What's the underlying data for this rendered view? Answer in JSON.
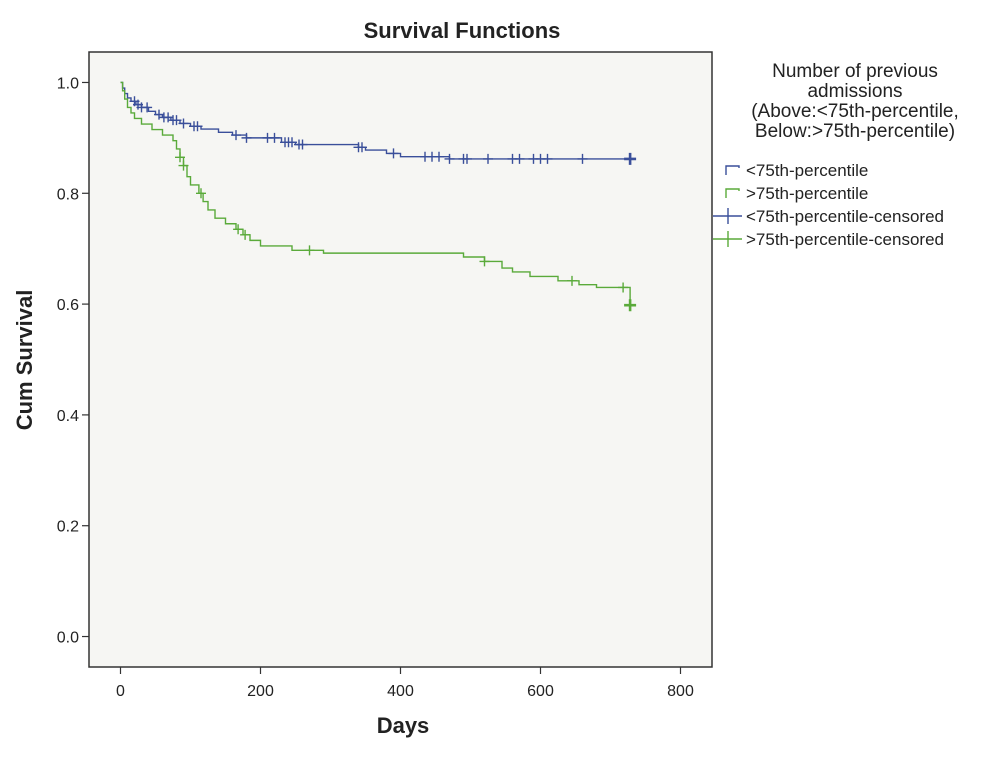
{
  "chart_data": {
    "type": "line",
    "title": "Survival Functions",
    "xlabel": "Days",
    "ylabel": "Cum Survival",
    "xlim": [
      -45,
      845
    ],
    "ylim": [
      -0.055,
      1.055
    ],
    "xticks": [
      0,
      200,
      400,
      600,
      800
    ],
    "yticks": [
      0.0,
      0.2,
      0.4,
      0.6,
      0.8,
      1.0
    ],
    "xtick_labels": [
      "0",
      "200",
      "400",
      "600",
      "800"
    ],
    "ytick_labels": [
      "0.0",
      "0.2",
      "0.4",
      "0.6",
      "0.8",
      "1.0"
    ],
    "grid": false,
    "plot_background": "#f6f6f3",
    "legend": {
      "title_lines": [
        "Number of previous",
        "admissions",
        "(Above:<75th-percentile,",
        "Below:>75th-percentile)"
      ],
      "placement": "right",
      "entries": [
        {
          "label": "<75th-percentile",
          "kind": "line",
          "color": "#3a4f9a"
        },
        {
          "label": ">75th-percentile",
          "kind": "line",
          "color": "#5aaa3a"
        },
        {
          "label": "<75th-percentile-censored",
          "kind": "censor",
          "color": "#3a4f9a"
        },
        {
          "label": ">75th-percentile-censored",
          "kind": "censor",
          "color": "#5aaa3a"
        }
      ]
    },
    "series": [
      {
        "name": "<75th-percentile",
        "color": "#3a4f9a",
        "steps": [
          [
            0,
            1.0
          ],
          [
            3,
            0.99
          ],
          [
            6,
            0.98
          ],
          [
            10,
            0.972
          ],
          [
            15,
            0.966
          ],
          [
            22,
            0.96
          ],
          [
            30,
            0.955
          ],
          [
            40,
            0.948
          ],
          [
            50,
            0.942
          ],
          [
            60,
            0.937
          ],
          [
            72,
            0.932
          ],
          [
            85,
            0.926
          ],
          [
            100,
            0.921
          ],
          [
            115,
            0.916
          ],
          [
            140,
            0.91
          ],
          [
            160,
            0.905
          ],
          [
            180,
            0.9
          ],
          [
            230,
            0.892
          ],
          [
            250,
            0.888
          ],
          [
            340,
            0.883
          ],
          [
            350,
            0.878
          ],
          [
            380,
            0.872
          ],
          [
            400,
            0.866
          ],
          [
            470,
            0.862
          ],
          [
            730,
            0.86
          ]
        ],
        "censored_x": [
          20,
          25,
          30,
          38,
          55,
          62,
          68,
          75,
          80,
          90,
          105,
          110,
          165,
          180,
          210,
          220,
          235,
          240,
          245,
          255,
          260,
          340,
          345,
          390,
          435,
          445,
          455,
          470,
          490,
          495,
          525,
          560,
          570,
          590,
          600,
          610,
          660,
          728
        ]
      },
      {
        "name": ">75th-percentile",
        "color": "#5aaa3a",
        "steps": [
          [
            0,
            1.0
          ],
          [
            3,
            0.985
          ],
          [
            6,
            0.97
          ],
          [
            10,
            0.955
          ],
          [
            15,
            0.945
          ],
          [
            20,
            0.935
          ],
          [
            30,
            0.925
          ],
          [
            45,
            0.915
          ],
          [
            60,
            0.905
          ],
          [
            75,
            0.895
          ],
          [
            80,
            0.88
          ],
          [
            85,
            0.865
          ],
          [
            90,
            0.85
          ],
          [
            95,
            0.83
          ],
          [
            100,
            0.815
          ],
          [
            112,
            0.8
          ],
          [
            118,
            0.785
          ],
          [
            125,
            0.77
          ],
          [
            135,
            0.755
          ],
          [
            150,
            0.745
          ],
          [
            165,
            0.735
          ],
          [
            175,
            0.725
          ],
          [
            185,
            0.715
          ],
          [
            200,
            0.705
          ],
          [
            245,
            0.697
          ],
          [
            290,
            0.692
          ],
          [
            490,
            0.685
          ],
          [
            520,
            0.677
          ],
          [
            545,
            0.665
          ],
          [
            560,
            0.658
          ],
          [
            585,
            0.65
          ],
          [
            625,
            0.642
          ],
          [
            655,
            0.635
          ],
          [
            680,
            0.63
          ],
          [
            728,
            0.598
          ]
        ],
        "censored_x": [
          85,
          90,
          115,
          168,
          178,
          270,
          520,
          645,
          718,
          728
        ]
      }
    ]
  }
}
